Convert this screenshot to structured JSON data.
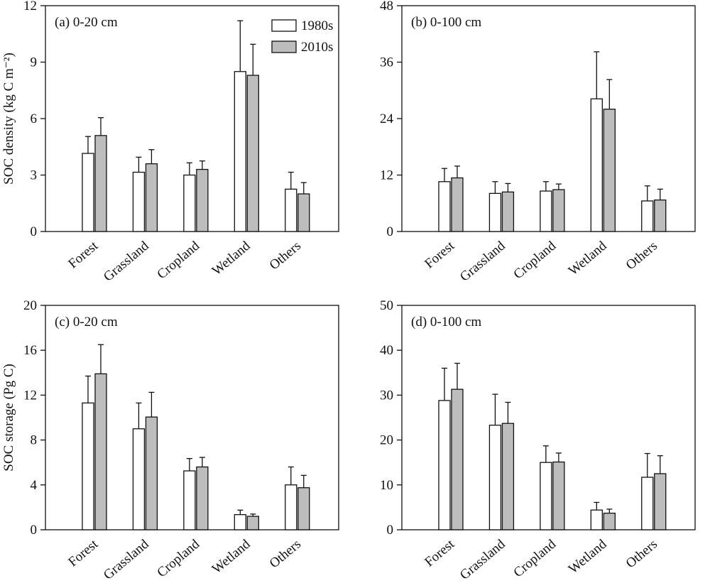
{
  "colors": {
    "s1980": "#ffffff",
    "s2010": "#bdbdbd",
    "stroke": "#111111"
  },
  "legend": [
    {
      "name": "1980s",
      "color": "#ffffff"
    },
    {
      "name": "2010s",
      "color": "#bdbdbd"
    }
  ],
  "chart_data": [
    {
      "type": "bar",
      "panel_label": "(a) 0-20 cm",
      "ylabel": "SOC density (kg C m⁻²)",
      "ylim": [
        0,
        12
      ],
      "yticks": [
        0,
        3,
        6,
        9,
        12
      ],
      "categories": [
        "Forest",
        "Grassland",
        "Cropland",
        "Wetland",
        "Others"
      ],
      "series": [
        {
          "name": "1980s",
          "values": [
            4.15,
            3.15,
            3.0,
            8.5,
            2.25
          ],
          "errors": [
            0.9,
            0.8,
            0.65,
            2.7,
            0.9
          ]
        },
        {
          "name": "2010s",
          "values": [
            5.1,
            3.6,
            3.3,
            8.3,
            2.0
          ],
          "errors": [
            0.95,
            0.75,
            0.45,
            1.65,
            0.6
          ]
        }
      ],
      "show_legend": true
    },
    {
      "type": "bar",
      "panel_label": "(b) 0-100 cm",
      "ylabel": "",
      "ylim": [
        0,
        48
      ],
      "yticks": [
        0,
        12,
        24,
        36,
        48
      ],
      "categories": [
        "Forest",
        "Grassland",
        "Cropland",
        "Wetland",
        "Others"
      ],
      "series": [
        {
          "name": "1980s",
          "values": [
            10.6,
            8.1,
            8.6,
            28.2,
            6.5
          ],
          "errors": [
            2.8,
            2.5,
            2.0,
            10.0,
            3.2
          ]
        },
        {
          "name": "2010s",
          "values": [
            11.4,
            8.4,
            8.9,
            26.0,
            6.7
          ],
          "errors": [
            2.5,
            1.8,
            1.2,
            6.3,
            2.3
          ]
        }
      ],
      "show_legend": false
    },
    {
      "type": "bar",
      "panel_label": "(c) 0-20 cm",
      "ylabel": "SOC storage (Pg C)",
      "ylim": [
        0,
        20
      ],
      "yticks": [
        0,
        4,
        8,
        12,
        16,
        20
      ],
      "categories": [
        "Forest",
        "Grassland",
        "Cropland",
        "Wetland",
        "Others"
      ],
      "series": [
        {
          "name": "1980s",
          "values": [
            11.3,
            9.0,
            5.25,
            1.35,
            4.0
          ],
          "errors": [
            2.4,
            2.3,
            1.1,
            0.4,
            1.6
          ]
        },
        {
          "name": "2010s",
          "values": [
            13.9,
            10.05,
            5.6,
            1.2,
            3.75
          ],
          "errors": [
            2.6,
            2.2,
            0.85,
            0.2,
            1.1
          ]
        }
      ],
      "show_legend": false
    },
    {
      "type": "bar",
      "panel_label": "(d) 0-100 cm",
      "ylabel": "",
      "ylim": [
        0,
        50
      ],
      "yticks": [
        0,
        10,
        20,
        30,
        40,
        50
      ],
      "categories": [
        "Forest",
        "Grassland",
        "Cropland",
        "Wetland",
        "Others"
      ],
      "series": [
        {
          "name": "1980s",
          "values": [
            28.8,
            23.3,
            15.0,
            4.4,
            11.7
          ],
          "errors": [
            7.2,
            6.9,
            3.7,
            1.7,
            5.3
          ]
        },
        {
          "name": "2010s",
          "values": [
            31.3,
            23.7,
            15.1,
            3.7,
            12.5
          ],
          "errors": [
            5.8,
            4.7,
            2.0,
            0.9,
            4.0
          ]
        }
      ],
      "show_legend": false
    }
  ]
}
